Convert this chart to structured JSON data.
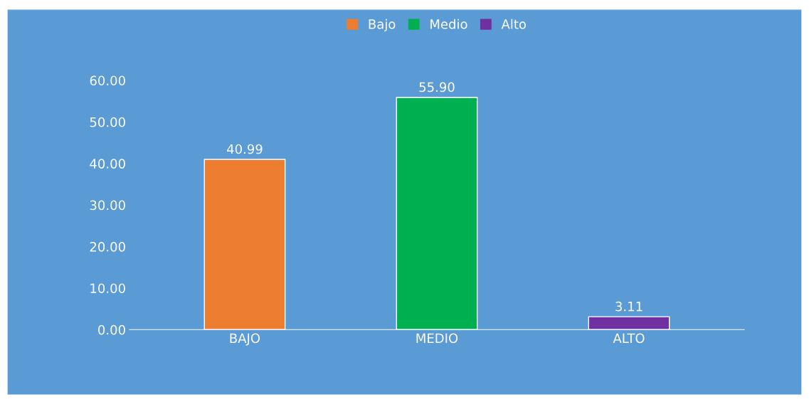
{
  "chart_data": {
    "type": "bar",
    "categories": [
      "BAJO",
      "MEDIO",
      "ALTO"
    ],
    "series": [
      {
        "name": "Bajo",
        "color": "#ed7d31",
        "values": [
          40.99,
          null,
          null
        ],
        "value_labels": [
          "40.99",
          null,
          null
        ]
      },
      {
        "name": "Medio",
        "color": "#00b050",
        "values": [
          null,
          55.9,
          null
        ],
        "value_labels": [
          null,
          "55.90",
          null
        ]
      },
      {
        "name": "Alto",
        "color": "#7030a0",
        "values": [
          null,
          null,
          3.11
        ],
        "value_labels": [
          null,
          null,
          "3.11"
        ]
      }
    ],
    "ylim": [
      0,
      60
    ],
    "yticks": [
      {
        "value": 0,
        "label": "0.00"
      },
      {
        "value": 10,
        "label": "10.00"
      },
      {
        "value": 20,
        "label": "20.00"
      },
      {
        "value": 30,
        "label": "30.00"
      },
      {
        "value": 40,
        "label": "40.00"
      },
      {
        "value": 50,
        "label": "50.00"
      },
      {
        "value": 60,
        "label": "60.00"
      }
    ],
    "grid": false,
    "legend": "top"
  }
}
